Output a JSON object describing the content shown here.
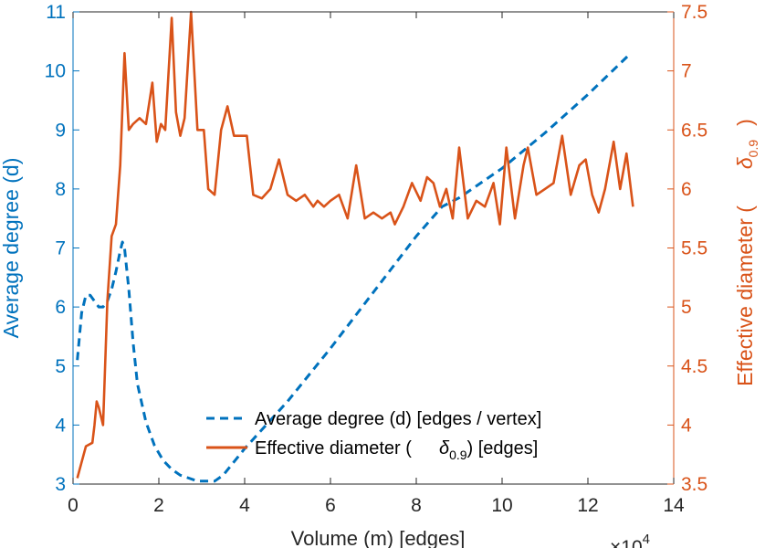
{
  "chart_data": {
    "type": "line",
    "xlabel": "Volume (m) [edges]",
    "x_multiplier": {
      "base": "×10",
      "exponent": "4"
    },
    "x_scale": 10000,
    "xlim": [
      0,
      14
    ],
    "xticks": [
      0,
      2,
      4,
      6,
      8,
      10,
      12,
      14
    ],
    "left_axis": {
      "label": "Average degree (d)",
      "lim": [
        3,
        11
      ],
      "ticks": [
        3,
        4,
        5,
        6,
        7,
        8,
        9,
        10,
        11
      ],
      "color": "#0072BD"
    },
    "right_axis": {
      "label_prefix": "Effective diameter (",
      "label_symbol": "δ",
      "label_subscript": "0.9",
      "label_suffix": ")",
      "lim": [
        3.5,
        7.5
      ],
      "ticks": [
        3.5,
        4,
        4.5,
        5,
        5.5,
        6,
        6.5,
        7,
        7.5
      ],
      "color": "#D95319"
    },
    "series": [
      {
        "name": "Average degree (d) [edges / vertex]",
        "axis": "left",
        "style": "dashed",
        "color": "#0072BD",
        "x": [
          0.1,
          0.2,
          0.3,
          0.4,
          0.5,
          0.6,
          0.7,
          0.8,
          0.9,
          1.0,
          1.1,
          1.15,
          1.2,
          1.3,
          1.4,
          1.5,
          1.7,
          1.9,
          2.1,
          2.3,
          2.5,
          2.7,
          2.9,
          3.1,
          3.3,
          3.5,
          4.0,
          5.0,
          6.0,
          7.0,
          8.0,
          8.6,
          9.0,
          10.0,
          11.0,
          12.0,
          13.0
        ],
        "y": [
          5.1,
          5.9,
          6.2,
          6.2,
          6.1,
          6.0,
          6.0,
          6.1,
          6.3,
          6.6,
          6.95,
          7.1,
          7.0,
          6.3,
          5.4,
          4.7,
          4.05,
          3.65,
          3.4,
          3.25,
          3.15,
          3.1,
          3.05,
          3.05,
          3.05,
          3.15,
          3.6,
          4.4,
          5.3,
          6.25,
          7.2,
          7.7,
          7.85,
          8.35,
          8.95,
          9.6,
          10.3
        ]
      },
      {
        "name": "Effective diameter",
        "legend_symbol": "δ",
        "legend_subscript": "0.9",
        "legend_suffix": "[edges]",
        "axis": "right",
        "style": "solid",
        "color": "#D95319",
        "x": [
          0.1,
          0.3,
          0.45,
          0.5,
          0.55,
          0.6,
          0.7,
          0.8,
          0.9,
          1.0,
          1.1,
          1.2,
          1.3,
          1.4,
          1.55,
          1.7,
          1.85,
          1.95,
          2.05,
          2.15,
          2.3,
          2.4,
          2.5,
          2.6,
          2.75,
          2.9,
          3.05,
          3.15,
          3.3,
          3.45,
          3.6,
          3.75,
          3.9,
          4.05,
          4.2,
          4.4,
          4.6,
          4.8,
          5.0,
          5.2,
          5.4,
          5.6,
          5.7,
          5.85,
          6.0,
          6.2,
          6.4,
          6.6,
          6.8,
          7.0,
          7.2,
          7.4,
          7.5,
          7.7,
          7.9,
          8.1,
          8.25,
          8.4,
          8.55,
          8.7,
          8.85,
          9.0,
          9.2,
          9.4,
          9.6,
          9.8,
          9.95,
          10.1,
          10.3,
          10.5,
          10.6,
          10.8,
          11.0,
          11.2,
          11.4,
          11.6,
          11.8,
          11.95,
          12.1,
          12.25,
          12.4,
          12.6,
          12.75,
          12.9,
          13.05
        ],
        "y": [
          3.55,
          3.82,
          3.85,
          4.0,
          4.2,
          4.15,
          4.0,
          5.05,
          5.6,
          5.7,
          6.2,
          7.15,
          6.5,
          6.55,
          6.6,
          6.55,
          6.9,
          6.4,
          6.55,
          6.5,
          7.45,
          6.65,
          6.45,
          6.6,
          7.5,
          6.5,
          6.5,
          6.0,
          5.95,
          6.5,
          6.7,
          6.45,
          6.45,
          6.45,
          5.95,
          5.92,
          6.0,
          6.25,
          5.95,
          5.9,
          5.95,
          5.85,
          5.9,
          5.85,
          5.9,
          5.95,
          5.75,
          6.2,
          5.75,
          5.8,
          5.75,
          5.8,
          5.7,
          5.85,
          6.05,
          5.9,
          6.1,
          6.05,
          5.85,
          6.0,
          5.75,
          6.35,
          5.75,
          5.9,
          5.85,
          6.05,
          5.7,
          6.35,
          5.75,
          6.2,
          6.35,
          5.95,
          6.0,
          6.05,
          6.45,
          5.95,
          6.2,
          6.25,
          5.95,
          5.8,
          6.0,
          6.4,
          6.0,
          6.3,
          5.85
        ]
      }
    ],
    "legend_location": "bottom-right"
  }
}
